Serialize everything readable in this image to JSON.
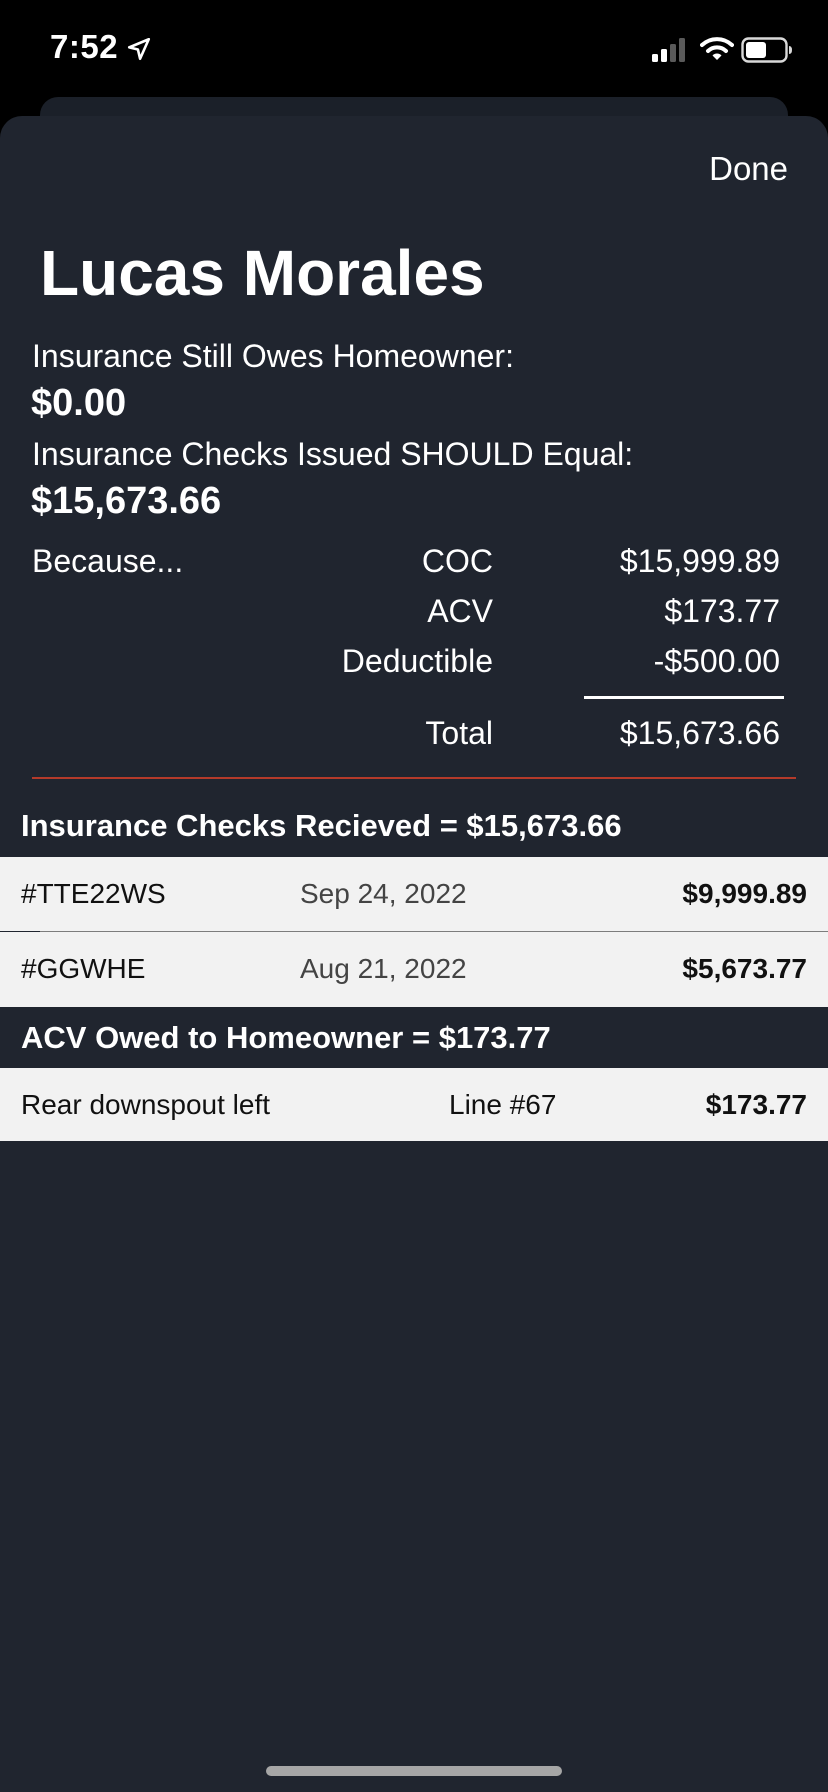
{
  "status_bar": {
    "time": "7:52"
  },
  "header": {
    "done_label": "Done",
    "customer_name": "Lucas Morales"
  },
  "summary": {
    "owes_label": "Insurance Still Owes Homeowner:",
    "owes_value": "$0.00",
    "issued_label": "Insurance Checks Issued SHOULD Equal:",
    "issued_value": "$15,673.66"
  },
  "breakdown": {
    "because_label": "Because...",
    "coc_label": "COC",
    "coc_value": "$15,999.89",
    "acv_label": "ACV",
    "acv_value": "$173.77",
    "deductible_label": "Deductible",
    "deductible_value": "-$500.00",
    "total_label": "Total",
    "total_value": "$15,673.66"
  },
  "checks_received": {
    "heading": "Insurance Checks Recieved = $15,673.66",
    "rows": [
      {
        "id": "#TTE22WS",
        "date": "Sep 24, 2022",
        "amount": "$9,999.89"
      },
      {
        "id": "#GGWHE",
        "date": "Aug 21, 2022",
        "amount": "$5,673.77"
      }
    ]
  },
  "acv_owed": {
    "heading": "ACV Owed to Homeowner = $173.77",
    "rows": [
      {
        "item": "Rear downspout left",
        "line": "Line #67",
        "amount": "$173.77"
      }
    ]
  },
  "colors": {
    "sheet_bg": "#20252f",
    "divider_red": "#b43a2a",
    "row_bg": "#f2f2f2"
  }
}
